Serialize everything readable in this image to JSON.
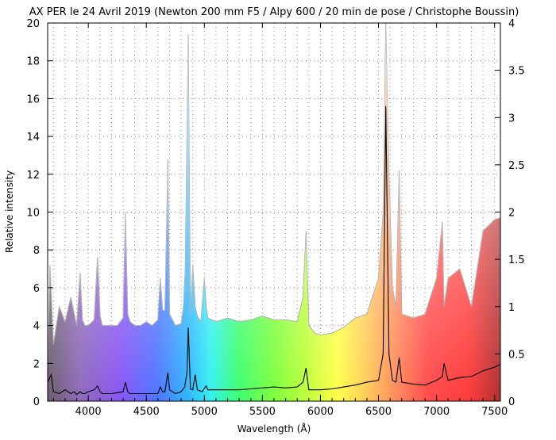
{
  "chart_data": {
    "type": "line",
    "title": "AX PER le 24 Avril 2019 (Newton 200 mm F5 / Alpy 600 / 20 min de pose / Christophe Boussin)",
    "xlabel": "Wavelength (Å)",
    "ylabel": "Relative intensity",
    "xlim": [
      3650,
      7550
    ],
    "ylim": [
      0,
      20
    ],
    "y2lim": [
      0,
      4
    ],
    "x_ticks": [
      4000,
      4500,
      5000,
      5500,
      6000,
      6500,
      7000,
      7500
    ],
    "y_ticks": [
      0,
      2,
      4,
      6,
      8,
      10,
      12,
      14,
      16,
      18,
      20
    ],
    "y2_ticks": [
      0,
      0.5,
      1,
      1.5,
      2,
      2.5,
      3,
      3.5,
      4
    ],
    "grid": true,
    "legend": "none",
    "series": [
      {
        "axis": "left",
        "fill": "rainbow spectrum under curve",
        "x": [
          3650,
          3670,
          3700,
          3750,
          3800,
          3850,
          3900,
          3930,
          3950,
          3970,
          4000,
          4050,
          4080,
          4102,
          4120,
          4200,
          4250,
          4300,
          4320,
          4340,
          4360,
          4400,
          4450,
          4500,
          4550,
          4600,
          4620,
          4640,
          4660,
          4686,
          4700,
          4750,
          4800,
          4820,
          4835,
          4861,
          4880,
          4900,
          4921,
          4940,
          4970,
          5000,
          5016,
          5030,
          5100,
          5200,
          5300,
          5400,
          5500,
          5600,
          5700,
          5800,
          5850,
          5876,
          5900,
          5950,
          6000,
          6100,
          6200,
          6300,
          6400,
          6500,
          6540,
          6563,
          6590,
          6620,
          6650,
          6678,
          6700,
          6800,
          6900,
          7000,
          7050,
          7065,
          7100,
          7200,
          7300,
          7400,
          7500,
          7550
        ],
        "y": [
          1.5,
          7.2,
          3.0,
          5.0,
          4.2,
          5.5,
          4.0,
          6.8,
          4.3,
          4.0,
          4.0,
          4.3,
          7.6,
          4.5,
          4.0,
          4.0,
          4.0,
          4.4,
          10.0,
          4.6,
          4.2,
          4.0,
          4.0,
          4.2,
          4.0,
          4.3,
          6.5,
          4.8,
          4.8,
          12.8,
          4.6,
          4.0,
          4.1,
          5.0,
          7.0,
          19.4,
          4.6,
          7.2,
          5.0,
          4.5,
          4.2,
          6.5,
          5.0,
          4.4,
          4.2,
          4.4,
          4.2,
          4.3,
          4.5,
          4.3,
          4.3,
          4.2,
          5.5,
          9.0,
          4.0,
          3.6,
          3.5,
          3.6,
          3.9,
          4.4,
          4.6,
          6.5,
          10.0,
          20.0,
          12.0,
          6.0,
          5.0,
          12.2,
          4.6,
          4.4,
          4.6,
          6.5,
          9.5,
          5.0,
          6.5,
          7.0,
          5.0,
          9.0,
          9.6,
          9.7
        ]
      },
      {
        "axis": "right",
        "color": "#000000",
        "x": [
          3650,
          3680,
          3700,
          3750,
          3800,
          3850,
          3880,
          3900,
          3930,
          3950,
          3970,
          4000,
          4050,
          4080,
          4102,
          4120,
          4200,
          4300,
          4320,
          4340,
          4360,
          4400,
          4500,
          4600,
          4620,
          4640,
          4660,
          4686,
          4700,
          4750,
          4800,
          4830,
          4850,
          4861,
          4880,
          4900,
          4921,
          4940,
          4980,
          5016,
          5030,
          5100,
          5200,
          5300,
          5400,
          5500,
          5600,
          5700,
          5800,
          5850,
          5876,
          5900,
          6000,
          6100,
          6200,
          6300,
          6400,
          6500,
          6540,
          6563,
          6590,
          6620,
          6650,
          6678,
          6700,
          6800,
          6900,
          7000,
          7050,
          7065,
          7100,
          7200,
          7300,
          7400,
          7500,
          7550
        ],
        "y": [
          0.2,
          0.28,
          0.1,
          0.08,
          0.12,
          0.08,
          0.1,
          0.07,
          0.1,
          0.08,
          0.08,
          0.1,
          0.12,
          0.16,
          0.1,
          0.08,
          0.08,
          0.1,
          0.2,
          0.1,
          0.08,
          0.08,
          0.08,
          0.08,
          0.15,
          0.1,
          0.1,
          0.3,
          0.12,
          0.08,
          0.1,
          0.15,
          0.3,
          0.78,
          0.13,
          0.12,
          0.28,
          0.12,
          0.1,
          0.16,
          0.12,
          0.12,
          0.12,
          0.12,
          0.13,
          0.14,
          0.15,
          0.14,
          0.15,
          0.2,
          0.35,
          0.12,
          0.12,
          0.13,
          0.15,
          0.17,
          0.2,
          0.22,
          0.5,
          3.12,
          0.5,
          0.22,
          0.2,
          0.46,
          0.2,
          0.18,
          0.17,
          0.22,
          0.26,
          0.4,
          0.22,
          0.25,
          0.26,
          0.32,
          0.36,
          0.39
        ]
      }
    ]
  }
}
